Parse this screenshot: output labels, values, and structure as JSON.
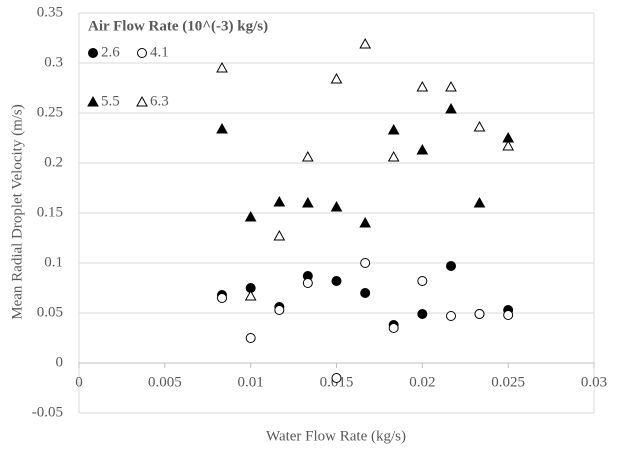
{
  "chart_data": {
    "type": "scatter",
    "x_label": "Water Flow Rate (kg/s)",
    "y_label": "Mean Radial Droplet Velocity (m/s)",
    "legend_title": "Air Flow Rate (10^(-3) kg/s)",
    "legend": "upper-left",
    "grid": true,
    "x": [
      0.00833,
      0.01,
      0.01167,
      0.01333,
      0.015,
      0.01667,
      0.01833,
      0.02,
      0.02167,
      0.02333,
      0.025
    ],
    "series": [
      {
        "name": "2.6",
        "color": "#000000",
        "marker": "circle",
        "filled": true,
        "values": [
          0.068,
          0.075,
          0.056,
          0.087,
          0.082,
          0.07,
          0.038,
          0.049,
          0.097,
          0.049,
          0.053
        ]
      },
      {
        "name": "4.1",
        "color": "#000000",
        "marker": "circle",
        "filled": false,
        "values": [
          0.065,
          0.025,
          0.053,
          0.08,
          -0.015,
          0.1,
          0.035,
          0.082,
          0.047,
          0.049,
          0.048
        ]
      },
      {
        "name": "5.5",
        "color": "#000000",
        "marker": "triangle",
        "filled": true,
        "values": [
          0.234,
          0.146,
          0.161,
          0.16,
          0.156,
          0.14,
          0.233,
          0.213,
          0.254,
          0.16,
          0.225
        ]
      },
      {
        "name": "6.3",
        "color": "#000000",
        "marker": "triangle",
        "filled": false,
        "values": [
          0.295,
          0.067,
          0.127,
          0.206,
          0.284,
          0.319,
          0.206,
          0.276,
          0.276,
          0.236,
          0.217
        ]
      }
    ],
    "xlim": [
      0,
      0.03
    ],
    "xticks": [
      0,
      0.005,
      0.01,
      0.015,
      0.02,
      0.025,
      0.03
    ],
    "ylim": [
      -0.05,
      0.35
    ],
    "yticks": [
      -0.05,
      0,
      0.05,
      0.1,
      0.15,
      0.2,
      0.25,
      0.3,
      0.35
    ]
  }
}
